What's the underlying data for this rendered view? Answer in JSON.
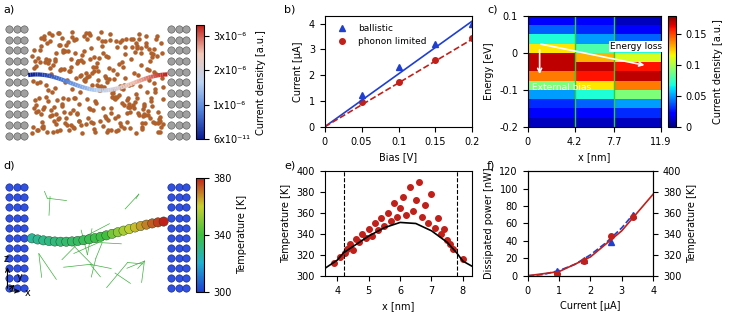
{
  "chart_data": [
    {
      "type": "image",
      "panel": "a)",
      "colorbar": {
        "label": "Current density [a.u.]",
        "lim": [
          6e-11,
          3.3e-06
        ],
        "ticks": [
          {
            "value": 6e-11,
            "label": "6x10⁻¹¹"
          },
          {
            "value": 1e-06,
            "label": "1x10⁻⁶"
          },
          {
            "value": 2e-06,
            "label": "2x10⁻⁶"
          },
          {
            "value": 3e-06,
            "label": "3x10⁻⁶"
          }
        ]
      }
    },
    {
      "type": "line",
      "panel": "b)",
      "x_label": "Bias [V]",
      "y_label": "Current [μA]",
      "xlim": [
        0,
        0.2
      ],
      "xticks": [
        0,
        0.05,
        0.1,
        0.15,
        0.2
      ],
      "ylim": [
        0,
        4.3
      ],
      "yticks": [
        0,
        1,
        2,
        3,
        4
      ],
      "legend": "upper left",
      "series": [
        {
          "name": "ballistic",
          "type": "scatter",
          "color": "#1f3fd0",
          "marker": "triangle",
          "x": [
            0.05,
            0.1,
            0.15,
            0.2
          ],
          "values": [
            1.25,
            2.3,
            3.2,
            4.0
          ]
        },
        {
          "name": "phonon limited",
          "type": "scatter",
          "color": "#c0201a",
          "marker": "circle",
          "x": [
            0.05,
            0.1,
            0.15,
            0.2
          ],
          "values": [
            0.95,
            1.75,
            2.6,
            3.45
          ]
        },
        {
          "type": "line",
          "color": "#1f3fd0",
          "line_style": "solid",
          "x": [
            0,
            0.2
          ],
          "values": [
            0,
            4.1
          ]
        },
        {
          "type": "line",
          "color": "#c0201a",
          "line_style": "dashed",
          "x": [
            0,
            0.2
          ],
          "values": [
            0,
            3.4
          ]
        }
      ]
    },
    {
      "type": "heatmap",
      "panel": "c)",
      "x_label": "x [nm]",
      "y_label": "Energy [eV]",
      "xlim": [
        0,
        11.9
      ],
      "xticks": [
        0,
        4.2,
        7.7,
        11.9
      ],
      "ylim": [
        -0.2,
        0.1
      ],
      "yticks": [
        -0.2,
        -0.1,
        0,
        0.1
      ],
      "x_edges": [
        0,
        1,
        2,
        3,
        4.2,
        5.4,
        6.5,
        7.7,
        8.7,
        9.8,
        10.8,
        11.9
      ],
      "y_edges": [
        -0.2,
        -0.175,
        -0.15,
        -0.125,
        -0.1,
        -0.075,
        -0.05,
        -0.025,
        0,
        0.025,
        0.05,
        0.075,
        0.1
      ],
      "cells": [
        [
          0.01,
          0.01,
          0.01,
          0.01,
          0.01,
          0.01,
          0.01,
          0.01,
          0.01,
          0.01,
          0.01
        ],
        [
          0.02,
          0.02,
          0.02,
          0.02,
          0.02,
          0.02,
          0.02,
          0.03,
          0.03,
          0.03,
          0.03
        ],
        [
          0.03,
          0.03,
          0.03,
          0.03,
          0.04,
          0.04,
          0.04,
          0.05,
          0.05,
          0.05,
          0.05
        ],
        [
          0.05,
          0.05,
          0.05,
          0.05,
          0.07,
          0.07,
          0.07,
          0.09,
          0.09,
          0.09,
          0.09
        ],
        [
          0.09,
          0.09,
          0.09,
          0.09,
          0.12,
          0.12,
          0.12,
          0.14,
          0.14,
          0.14,
          0.14
        ],
        [
          0.14,
          0.14,
          0.14,
          0.14,
          0.16,
          0.16,
          0.16,
          0.17,
          0.17,
          0.17,
          0.17
        ],
        [
          0.17,
          0.17,
          0.17,
          0.17,
          0.17,
          0.17,
          0.17,
          0.16,
          0.16,
          0.16,
          0.16
        ],
        [
          0.17,
          0.17,
          0.17,
          0.17,
          0.13,
          0.13,
          0.13,
          0.11,
          0.11,
          0.11,
          0.11
        ],
        [
          0.12,
          0.12,
          0.12,
          0.12,
          0.08,
          0.08,
          0.08,
          0.07,
          0.07,
          0.07,
          0.07
        ],
        [
          0.07,
          0.07,
          0.07,
          0.07,
          0.05,
          0.05,
          0.05,
          0.04,
          0.04,
          0.04,
          0.04
        ],
        [
          0.04,
          0.04,
          0.04,
          0.04,
          0.03,
          0.03,
          0.03,
          0.02,
          0.02,
          0.02,
          0.02
        ],
        [
          0.02,
          0.02,
          0.02,
          0.02,
          0.02,
          0.02,
          0.02,
          0.01,
          0.01,
          0.01,
          0.01
        ]
      ],
      "vlines": [
        4.2,
        7.7
      ],
      "vline_color": "#30d030",
      "annotations": [
        "Energy loss",
        "External bias"
      ],
      "colorbar": {
        "label": "Current density [a.u.]",
        "lim": [
          0,
          0.18
        ],
        "ticks": [
          0,
          0.05,
          0.1,
          0.15
        ]
      }
    },
    {
      "type": "image",
      "panel": "d)",
      "axes_letters": [
        "z",
        "y",
        "x"
      ],
      "colorbar": {
        "label": "Temperature [K]",
        "lim": [
          300,
          380
        ],
        "ticks": [
          300,
          340,
          380
        ]
      }
    },
    {
      "type": "scatter",
      "panel": "e)",
      "x_label": "x [nm]",
      "y_label": "Temperature [K]",
      "xlim": [
        3.6,
        8.3
      ],
      "xticks": [
        4,
        5,
        6,
        7,
        8
      ],
      "ylim": [
        300,
        400
      ],
      "yticks": [
        300,
        320,
        340,
        360,
        380,
        400
      ],
      "vlines": [
        4.2,
        7.8
      ],
      "series": [
        {
          "type": "scatter",
          "color": "#c0201a",
          "marker": "circle",
          "x": [
            3.9,
            4.1,
            4.25,
            4.3,
            4.4,
            4.5,
            4.6,
            4.7,
            4.8,
            4.9,
            5.0,
            5.1,
            5.2,
            5.3,
            5.4,
            5.5,
            5.6,
            5.7,
            5.8,
            5.9,
            6.0,
            6.1,
            6.2,
            6.3,
            6.4,
            6.5,
            6.6,
            6.7,
            6.8,
            6.9,
            7.0,
            7.1,
            7.2,
            7.3,
            7.4,
            7.5,
            7.6,
            7.7,
            8.0
          ],
          "values": [
            312,
            318,
            322,
            326,
            330,
            325,
            335,
            332,
            340,
            336,
            345,
            338,
            350,
            344,
            355,
            348,
            360,
            352,
            370,
            356,
            365,
            375,
            358,
            385,
            362,
            372,
            390,
            356,
            368,
            350,
            378,
            346,
            355,
            340,
            345,
            334,
            330,
            326,
            316
          ]
        },
        {
          "type": "line",
          "color": "#000000",
          "line_style": "solid",
          "x": [
            3.6,
            4.0,
            4.2,
            4.5,
            5.0,
            5.5,
            6.0,
            6.5,
            7.0,
            7.5,
            7.8,
            8.0,
            8.3
          ],
          "values": [
            307,
            315,
            322,
            328,
            338,
            346,
            351,
            350,
            343,
            332,
            322,
            314,
            309
          ]
        }
      ]
    },
    {
      "type": "line",
      "panel": "f)",
      "x_label": "Current [μA]",
      "y_label": "Dissipated power [nW]",
      "y2_label": "Temperature [K]",
      "xlim": [
        0,
        4
      ],
      "xticks": [
        0,
        1,
        2,
        3,
        4
      ],
      "ylim": [
        0,
        120
      ],
      "yticks": [
        0,
        20,
        40,
        60,
        80,
        100,
        120
      ],
      "y2lim": [
        300,
        400
      ],
      "y2ticks": [
        300,
        320,
        340,
        360,
        380,
        400
      ],
      "series": [
        {
          "type": "scatter",
          "color": "#1f3fd0",
          "marker": "triangle",
          "x": [
            0.95,
            1.8,
            2.65,
            3.35
          ],
          "values": [
            5,
            18,
            39,
            70
          ]
        },
        {
          "type": "line",
          "color": "#1f3fd0",
          "line_style": "dashed",
          "x": [
            0,
            0.5,
            1.0,
            1.5,
            2.0,
            2.5,
            3.0,
            3.4
          ],
          "values": [
            0,
            1.5,
            6,
            13,
            24,
            38,
            55,
            72
          ]
        },
        {
          "type": "scatter",
          "color": "#c0201a",
          "marker": "circle",
          "axis": "y2",
          "x": [
            0.95,
            1.8,
            2.65,
            3.35
          ],
          "values": [
            302,
            314,
            338,
            356
          ]
        },
        {
          "type": "line",
          "color": "#c0201a",
          "line_style": "solid",
          "axis": "y2",
          "x": [
            0,
            1,
            2,
            3,
            4
          ],
          "values": [
            300,
            304,
            318,
            343,
            378
          ]
        }
      ]
    }
  ]
}
